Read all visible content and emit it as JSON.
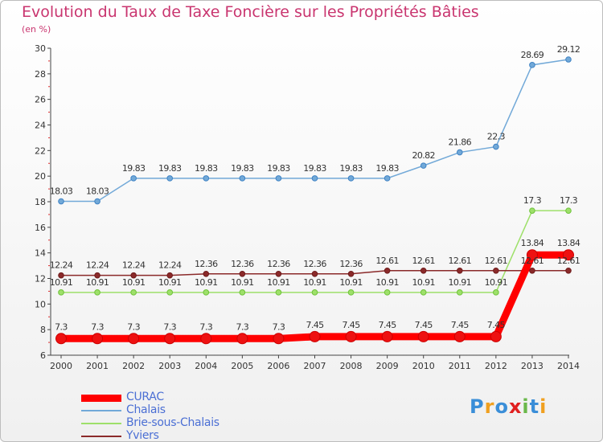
{
  "header": {
    "title": "Evolution du Taux de Taxe Foncière sur les Propriétés Bâties",
    "unit": "(en %)"
  },
  "logo": {
    "text": "Proxiti",
    "letters": [
      "P",
      "r",
      "o",
      "x",
      "i",
      "t",
      "i"
    ],
    "colors": [
      "#3a8ed8",
      "#f0a020",
      "#3a8ed8",
      "#e02020",
      "#6ab84a",
      "#3a8ed8",
      "#f0a020"
    ]
  },
  "chart_data": {
    "type": "line",
    "title": "Evolution du Taux de Taxe Foncière sur les Propriétés Bâties",
    "ylabel": "(en %)",
    "xlabel": "",
    "x": [
      "2000",
      "2001",
      "2002",
      "2003",
      "2004",
      "2005",
      "2006",
      "2007",
      "2008",
      "2009",
      "2010",
      "2011",
      "2012",
      "2013",
      "2014"
    ],
    "ylim": [
      6,
      30
    ],
    "yticks": [
      6,
      8,
      10,
      12,
      14,
      16,
      18,
      20,
      22,
      24,
      26,
      28,
      30
    ],
    "grid": false,
    "legend_position": "bottom-left",
    "series": [
      {
        "name": "CURAC",
        "color": "#ff0000",
        "emphasis": true,
        "values": [
          7.3,
          7.3,
          7.3,
          7.3,
          7.3,
          7.3,
          7.3,
          7.45,
          7.45,
          7.45,
          7.45,
          7.45,
          7.45,
          13.84,
          13.84
        ],
        "labels": [
          "7.3",
          "7.3",
          "7.3",
          "7.3",
          "7.3",
          "7.3",
          "7.3",
          "7.45",
          "7.45",
          "7.45",
          "7.45",
          "7.45",
          "7.45",
          "13.84",
          "13.84"
        ]
      },
      {
        "name": "Chalais",
        "color": "#72a9d8",
        "point_color": "#3e82c4",
        "values": [
          18.03,
          18.03,
          19.83,
          19.83,
          19.83,
          19.83,
          19.83,
          19.83,
          19.83,
          19.83,
          20.82,
          21.86,
          22.3,
          28.69,
          29.12
        ],
        "labels": [
          "18.03",
          "18.03",
          "19.83",
          "19.83",
          "19.83",
          "19.83",
          "19.83",
          "19.83",
          "19.83",
          "19.83",
          "20.82",
          "21.86",
          "22.3",
          "28.69",
          "29.12"
        ]
      },
      {
        "name": "Brie-sous-Chalais",
        "color": "#9ee06a",
        "point_color": "#6ec23a",
        "values": [
          10.91,
          10.91,
          10.91,
          10.91,
          10.91,
          10.91,
          10.91,
          10.91,
          10.91,
          10.91,
          10.91,
          10.91,
          10.91,
          17.3,
          17.3
        ],
        "labels": [
          "10.91",
          "10.91",
          "10.91",
          "10.91",
          "10.91",
          "10.91",
          "10.91",
          "10.91",
          "10.91",
          "10.91",
          "10.91",
          "10.91",
          "10.91",
          "17.3",
          "17.3"
        ]
      },
      {
        "name": "Yviers",
        "color": "#8b2a2a",
        "point_color": "#6e1c1c",
        "values": [
          12.24,
          12.24,
          12.24,
          12.24,
          12.36,
          12.36,
          12.36,
          12.36,
          12.36,
          12.61,
          12.61,
          12.61,
          12.61,
          12.61,
          12.61
        ],
        "labels": [
          "12.24",
          "12.24",
          "12.24",
          "12.24",
          "12.36",
          "12.36",
          "12.36",
          "12.36",
          "12.36",
          "12.61",
          "12.61",
          "12.61",
          "12.61",
          "12.61",
          "12.61"
        ]
      }
    ]
  }
}
